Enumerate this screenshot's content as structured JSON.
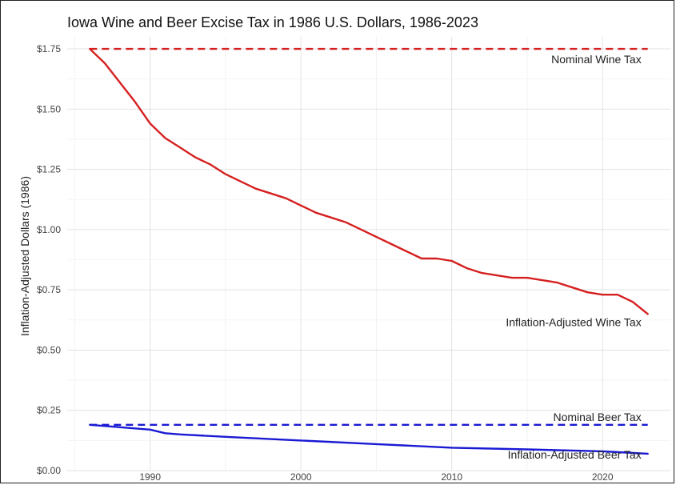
{
  "chart_data": {
    "type": "line",
    "title": "Iowa Wine and Beer Excise Tax in 1986 U.S. Dollars, 1986-2023",
    "xlabel": "",
    "ylabel": "Inflation-Adjusted Dollars (1986)",
    "xlim": [
      1984.5,
      2024.5
    ],
    "ylim": [
      0,
      1.8
    ],
    "x_ticks": [
      1990,
      2000,
      2010,
      2020
    ],
    "x_tick_labels": [
      "1990",
      "2000",
      "2010",
      "2020"
    ],
    "y_ticks": [
      0,
      0.25,
      0.5,
      0.75,
      1.0,
      1.25,
      1.5,
      1.75
    ],
    "y_tick_labels": [
      "$0.00",
      "$0.25",
      "$0.50",
      "$0.75",
      "$1.00",
      "$1.25",
      "$1.50",
      "$1.75"
    ],
    "grid": true,
    "legend": "none",
    "series": [
      {
        "name": "Nominal Wine Tax",
        "color": "#d62020",
        "dashed": true,
        "x": [
          1986,
          2023
        ],
        "values": [
          1.75,
          1.75
        ]
      },
      {
        "name": "Inflation-Adjusted Wine Tax",
        "color": "#d62020",
        "dashed": false,
        "x": [
          1986,
          1987,
          1988,
          1989,
          1990,
          1991,
          1992,
          1993,
          1994,
          1995,
          1996,
          1997,
          1998,
          1999,
          2000,
          2001,
          2002,
          2003,
          2004,
          2005,
          2006,
          2007,
          2008,
          2009,
          2010,
          2011,
          2012,
          2013,
          2014,
          2015,
          2016,
          2017,
          2018,
          2019,
          2020,
          2021,
          2022,
          2023
        ],
        "values": [
          1.75,
          1.69,
          1.61,
          1.53,
          1.44,
          1.38,
          1.34,
          1.3,
          1.27,
          1.23,
          1.2,
          1.17,
          1.15,
          1.13,
          1.1,
          1.07,
          1.05,
          1.03,
          1.0,
          0.97,
          0.94,
          0.91,
          0.88,
          0.88,
          0.87,
          0.84,
          0.82,
          0.81,
          0.8,
          0.8,
          0.79,
          0.78,
          0.76,
          0.74,
          0.73,
          0.73,
          0.7,
          0.65
        ]
      },
      {
        "name": "Nominal Beer Tax",
        "color": "#1a1ad4",
        "dashed": true,
        "x": [
          1986,
          2023
        ],
        "values": [
          0.19,
          0.19
        ]
      },
      {
        "name": "Inflation-Adjusted Beer Tax",
        "color": "#1a1ad4",
        "dashed": false,
        "x": [
          1986,
          1988,
          1990,
          1991,
          1992,
          1995,
          2000,
          2005,
          2010,
          2015,
          2020,
          2023
        ],
        "values": [
          0.19,
          0.18,
          0.17,
          0.155,
          0.15,
          0.14,
          0.125,
          0.11,
          0.095,
          0.088,
          0.08,
          0.07
        ]
      }
    ],
    "annotations": [
      {
        "text": "Nominal Wine Tax",
        "x": 2023,
        "y": 1.75
      },
      {
        "text": "Inflation-Adjusted Wine Tax",
        "x": 2023,
        "y": 0.62
      },
      {
        "text": "Nominal Beer Tax",
        "x": 2023,
        "y": 0.19
      },
      {
        "text": "Inflation-Adjusted Beer Tax",
        "x": 2023,
        "y": 0.07
      }
    ]
  }
}
